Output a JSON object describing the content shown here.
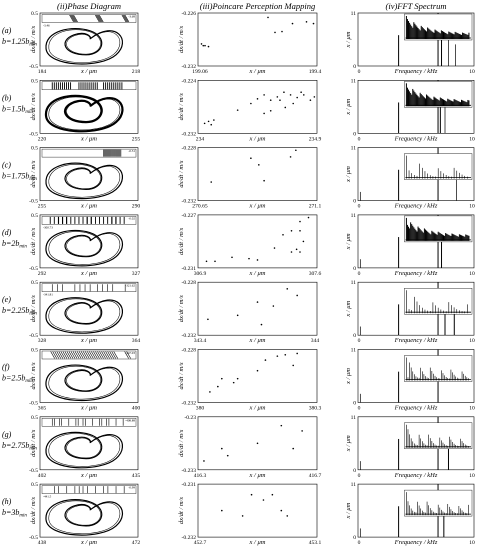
{
  "columns": [
    {
      "title": "(ii)Phase Diagram",
      "xlabel": "x / μm",
      "ylabel": "dx/dt / m/s"
    },
    {
      "title": "(iii)Poincare Perception Mapping",
      "xlabel": "x / μm",
      "ylabel": "dx/dt / m/s"
    },
    {
      "title": "(iv)FFT Spectrum",
      "xlabel": "Frequency / kHz",
      "ylabel": "x / μm"
    }
  ],
  "chart_data": {
    "type": "figure-grid",
    "rows": [
      {
        "tag": "(a)",
        "label": "b=1.25b",
        "phase": {
          "xticks": [
            "184",
            "218"
          ],
          "yticks": [
            "0.5",
            "-0.5"
          ],
          "inset": {
            "left": "-3.46",
            "right": "-3.68"
          }
        },
        "poincare": {
          "xticks": [
            "199.06",
            "199.4"
          ],
          "yticks": [
            "-0.226",
            "-0.232"
          ],
          "points": [
            [
              199.07,
              -0.2295
            ],
            [
              199.075,
              -0.2297
            ],
            [
              199.08,
              -0.2297
            ],
            [
              199.09,
              -0.2298
            ],
            [
              199.26,
              -0.2265
            ],
            [
              199.28,
              -0.2282
            ],
            [
              199.3,
              -0.2281
            ],
            [
              199.33,
              -0.2272
            ],
            [
              199.37,
              -0.227
            ],
            [
              199.39,
              -0.2272
            ]
          ]
        },
        "fft": {
          "xticks": [
            "0",
            "10"
          ],
          "yticks": [
            "11",
            "0"
          ],
          "peaks": [
            [
              3.5,
              6.4
            ],
            [
              6.9,
              11
            ],
            [
              7.2,
              7.5
            ],
            [
              7.8,
              5.5
            ],
            [
              8.4,
              4.5
            ]
          ],
          "inset": "dense"
        }
      },
      {
        "tag": "(b)",
        "label": "b=1.5b",
        "phase": {
          "xticks": [
            "220",
            "255"
          ],
          "yticks": [
            "0.5",
            "-0.5"
          ],
          "inset": {
            "left": "",
            "right": ""
          }
        },
        "poincare": {
          "xticks": [
            "234",
            "234.9"
          ],
          "yticks": [
            "-0.224",
            "-0.232"
          ],
          "points": [
            [
              234.05,
              -0.2305
            ],
            [
              234.08,
              -0.2302
            ],
            [
              234.1,
              -0.2307
            ],
            [
              234.12,
              -0.23
            ],
            [
              234.4,
              -0.2275
            ],
            [
              234.45,
              -0.2268
            ],
            [
              234.5,
              -0.2262
            ],
            [
              234.55,
              -0.227
            ],
            [
              234.6,
              -0.2265
            ],
            [
              234.65,
              -0.2258
            ],
            [
              234.7,
              -0.2262
            ],
            [
              234.72,
              -0.2275
            ],
            [
              234.75,
              -0.2266
            ],
            [
              234.78,
              -0.2258
            ],
            [
              234.8,
              -0.2262
            ],
            [
              234.85,
              -0.227
            ],
            [
              234.3,
              -0.2285
            ],
            [
              234.5,
              -0.229
            ],
            [
              234.55,
              -0.2286
            ],
            [
              234.62,
              -0.227
            ],
            [
              234.66,
              -0.2281
            ],
            [
              234.88,
              -0.2265
            ]
          ]
        },
        "fft": {
          "xticks": [
            "0",
            "10"
          ],
          "yticks": [
            "11",
            "0"
          ],
          "peaks": [
            [
              3.5,
              6.4
            ],
            [
              6.9,
              11
            ],
            [
              7.1,
              8
            ],
            [
              7.5,
              6
            ]
          ],
          "inset": "dense"
        }
      },
      {
        "tag": "(c)",
        "label": "b=1.75b",
        "phase": {
          "xticks": [
            "255",
            "290"
          ],
          "yticks": [
            "0.5",
            "-0.5"
          ],
          "inset": {
            "left": "",
            "right": "-0.31"
          }
        },
        "poincare": {
          "xticks": [
            "270.65",
            "271.1"
          ],
          "yticks": [
            "-0.228",
            "-0.232"
          ],
          "points": [
            [
              270.7,
              -0.2306
            ],
            [
              270.85,
              -0.2288
            ],
            [
              270.88,
              -0.2293
            ],
            [
              270.9,
              -0.2305
            ],
            [
              271.0,
              -0.2287
            ],
            [
              271.02,
              -0.2282
            ]
          ]
        },
        "fft": {
          "xticks": [
            "0",
            "10"
          ],
          "yticks": [
            "11",
            "0"
          ],
          "peaks": [
            [
              0.2,
              1.8
            ],
            [
              3.5,
              6.4
            ],
            [
              6.9,
              11
            ],
            [
              8.5,
              5
            ]
          ],
          "inset": "sparse"
        }
      },
      {
        "tag": "(d)",
        "label": "b=2b",
        "phase": {
          "xticks": [
            "292",
            "327"
          ],
          "yticks": [
            "0.5",
            "-0.5"
          ],
          "inset": {
            "left": "-300.73",
            "right": "-0.02"
          }
        },
        "poincare": {
          "xticks": [
            "306.9",
            "307.6"
          ],
          "yticks": [
            "-0.227",
            "-0.231"
          ],
          "points": [
            [
              306.95,
              -0.2305
            ],
            [
              307.0,
              -0.2305
            ],
            [
              307.1,
              -0.2302
            ],
            [
              307.2,
              -0.2303
            ],
            [
              307.25,
              -0.2304
            ],
            [
              307.35,
              -0.2295
            ],
            [
              307.4,
              -0.2285
            ],
            [
              307.45,
              -0.2282
            ],
            [
              307.5,
              -0.2275
            ],
            [
              307.5,
              -0.2282
            ],
            [
              307.52,
              -0.229
            ],
            [
              307.55,
              -0.2272
            ],
            [
              307.45,
              -0.2298
            ],
            [
              307.5,
              -0.2298
            ],
            [
              307.48,
              -0.2296
            ]
          ]
        },
        "fft": {
          "xticks": [
            "0",
            "10"
          ],
          "yticks": [
            "11",
            "0"
          ],
          "peaks": [
            [
              0.2,
              1.8
            ],
            [
              3.5,
              6.4
            ],
            [
              6.9,
              11
            ],
            [
              7.2,
              7.8
            ]
          ],
          "inset": "dense"
        }
      },
      {
        "tag": "(e)",
        "label": "b=2.25b",
        "phase": {
          "xticks": [
            "328",
            "364"
          ],
          "yticks": [
            "0.5",
            "-0.5"
          ],
          "inset": {
            "left": "-341.81",
            "right": "-321.62"
          }
        },
        "poincare": {
          "xticks": [
            "343.4",
            "344"
          ],
          "yticks": [
            "-0.228",
            "-0.232"
          ],
          "points": [
            [
              343.45,
              -0.2308
            ],
            [
              343.6,
              -0.2305
            ],
            [
              343.7,
              -0.2295
            ],
            [
              343.72,
              -0.2312
            ],
            [
              343.78,
              -0.2298
            ],
            [
              343.85,
              -0.2285
            ],
            [
              343.9,
              -0.229
            ]
          ]
        },
        "fft": {
          "xticks": [
            "0",
            "10"
          ],
          "yticks": [
            "11",
            "0"
          ],
          "peaks": [
            [
              0.2,
              1.8
            ],
            [
              3.5,
              6.4
            ],
            [
              6.9,
              11
            ],
            [
              7.5,
              8.2
            ],
            [
              8.3,
              9
            ]
          ],
          "inset": "sparse"
        }
      },
      {
        "tag": "(f)",
        "label": "b=2.5b",
        "phase": {
          "xticks": [
            "365",
            "400"
          ],
          "yticks": [
            "0.5",
            "-0.5"
          ],
          "inset": {
            "left": "",
            "right": "-347.03"
          }
        },
        "poincare": {
          "xticks": [
            "380",
            "380.3"
          ],
          "yticks": [
            "-0.228",
            "-0.232"
          ],
          "points": [
            [
              380.03,
              -0.2312
            ],
            [
              380.05,
              -0.2308
            ],
            [
              380.06,
              -0.2302
            ],
            [
              380.09,
              -0.2305
            ],
            [
              380.1,
              -0.2302
            ],
            [
              380.15,
              -0.2296
            ],
            [
              380.17,
              -0.2288
            ],
            [
              380.2,
              -0.2285
            ],
            [
              380.22,
              -0.2284
            ],
            [
              380.24,
              -0.2292
            ],
            [
              380.25,
              -0.2283
            ]
          ]
        },
        "fft": {
          "xticks": [
            "0",
            "10"
          ],
          "yticks": [
            "11",
            "0"
          ],
          "peaks": [
            [
              0.2,
              1.8
            ],
            [
              3.5,
              6.4
            ],
            [
              6.9,
              11
            ]
          ],
          "inset": "medium"
        }
      },
      {
        "tag": "(g)",
        "label": "b=2.75b",
        "phase": {
          "xticks": [
            "402",
            "435"
          ],
          "yticks": [
            "0.5",
            "-0.5"
          ],
          "inset": {
            "left": "",
            "right": "-408.88"
          }
        },
        "poincare": {
          "xticks": [
            "416.3",
            "416.7"
          ],
          "yticks": [
            "-0.23",
            "-0.233"
          ],
          "points": [
            [
              416.32,
              -0.2325
            ],
            [
              416.38,
              -0.2318
            ],
            [
              416.4,
              -0.2322
            ],
            [
              416.5,
              -0.2315
            ],
            [
              416.58,
              -0.2305
            ],
            [
              416.62,
              -0.2318
            ],
            [
              416.65,
              -0.2308
            ]
          ]
        },
        "fft": {
          "xticks": [
            "0",
            "10"
          ],
          "yticks": [
            "11",
            "0"
          ],
          "peaks": [
            [
              0.2,
              1.8
            ],
            [
              3.5,
              6.4
            ],
            [
              6.9,
              11
            ],
            [
              7.8,
              8
            ]
          ],
          "inset": "medium"
        }
      },
      {
        "tag": "(h)",
        "label": "b=3b",
        "phase": {
          "xticks": [
            "438",
            "472"
          ],
          "yticks": [
            "0.5",
            "-0.5"
          ],
          "inset": {
            "left": "-441.5",
            "right": "-0.99"
          }
        },
        "poincare": {
          "xticks": [
            "452.7",
            "453.1"
          ],
          "yticks": [
            "-0.231",
            "-0.232"
          ],
          "points": [
            [
              452.78,
              -0.2315
            ],
            [
              452.85,
              -0.2316
            ],
            [
              452.88,
              -0.2312
            ],
            [
              452.92,
              -0.2313
            ],
            [
              452.95,
              -0.2312
            ],
            [
              452.98,
              -0.2315
            ],
            [
              453.0,
              -0.2316
            ]
          ]
        },
        "fft": {
          "xticks": [
            "0",
            "10"
          ],
          "yticks": [
            "11",
            "0"
          ],
          "peaks": [
            [
              0.2,
              1.8
            ],
            [
              3.5,
              6.4
            ],
            [
              6.9,
              11
            ],
            [
              7.4,
              7.5
            ]
          ],
          "inset": "medium"
        }
      }
    ]
  }
}
